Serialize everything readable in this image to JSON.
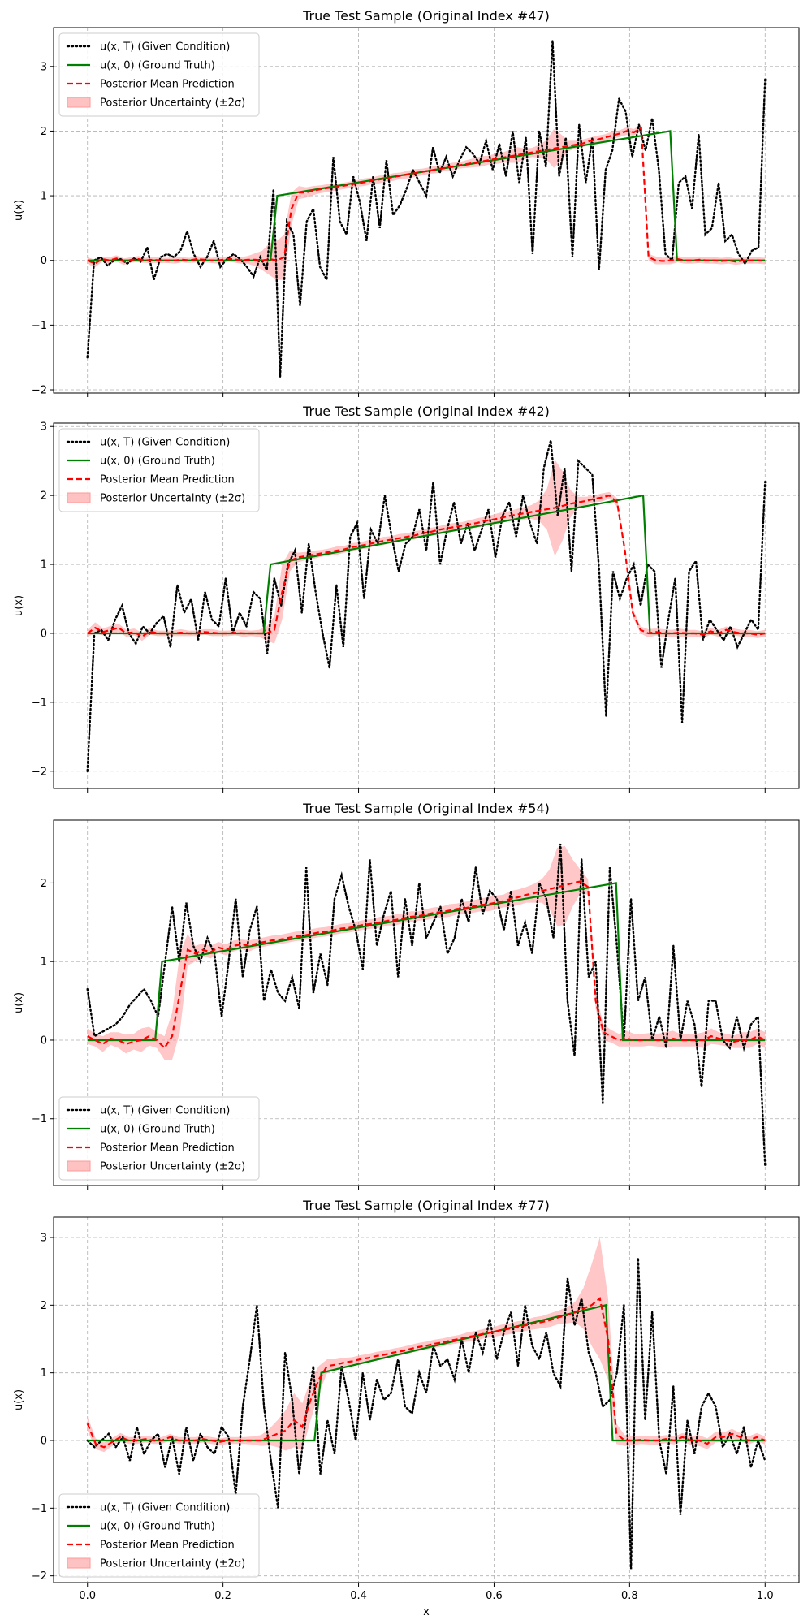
{
  "figure": {
    "xlabel": "x",
    "ylabel": "u(x)"
  },
  "legend_labels": {
    "condition": "u(x, T) (Given Condition)",
    "truth": "u(x, 0) (Ground Truth)",
    "mean": "Posterior Mean Prediction",
    "band": "Posterior Uncertainty (±2σ)"
  },
  "colors": {
    "condition": "#000000",
    "truth": "#008000",
    "mean": "#ff0000",
    "band": "#ff9999"
  },
  "chart_data": [
    {
      "type": "line",
      "title": "True Test Sample (Original Index #47)",
      "xlabel": "",
      "ylabel": "u(x)",
      "xlim": [
        -0.05,
        1.05
      ],
      "ylim": [
        -2.05,
        3.6
      ],
      "xticks": [
        0.0,
        0.2,
        0.4,
        0.6,
        0.8,
        1.0
      ],
      "yticks": [
        -2,
        -1,
        0,
        1,
        2,
        3
      ],
      "legend": "upper-left",
      "truth": {
        "x": [
          0,
          0.27,
          0.28,
          0.86,
          0.87,
          1.0
        ],
        "y": [
          0,
          0,
          1.0,
          2.0,
          0,
          0
        ]
      },
      "truth_jump": 0.275,
      "truth_drop": 0.865,
      "condition_y": [
        -1.5,
        0.0,
        0.05,
        -0.08,
        0.0,
        0.02,
        -0.05,
        0.03,
        -0.02,
        0.2,
        -0.3,
        0.05,
        0.1,
        0.05,
        0.15,
        0.45,
        0.1,
        -0.1,
        0.05,
        0.3,
        -0.1,
        0.02,
        0.1,
        0.02,
        -0.1,
        -0.25,
        0.05,
        -0.15,
        1.1,
        -1.8,
        0.6,
        0.4,
        -0.7,
        0.6,
        0.8,
        -0.1,
        -0.3,
        1.6,
        0.6,
        0.4,
        1.3,
        0.9,
        0.3,
        1.3,
        0.5,
        1.55,
        0.7,
        0.85,
        1.1,
        1.4,
        1.2,
        1.0,
        1.75,
        1.35,
        1.6,
        1.3,
        1.55,
        1.75,
        1.65,
        1.5,
        1.85,
        1.4,
        1.8,
        1.3,
        2.0,
        1.2,
        1.9,
        0.1,
        2.0,
        1.45,
        3.4,
        1.3,
        1.9,
        0.05,
        2.1,
        1.2,
        1.9,
        -0.15,
        1.4,
        1.7,
        2.5,
        2.3,
        1.6,
        2.1,
        1.7,
        2.2,
        1.4,
        0.1,
        0.0,
        1.2,
        1.3,
        0.8,
        1.95,
        0.4,
        0.5,
        1.2,
        0.3,
        0.4,
        0.1,
        -0.05,
        0.15,
        0.2,
        2.8
      ],
      "mean_y": [
        0.0,
        -0.05,
        0.02,
        0.0,
        0.03,
        -0.02,
        0.01,
        0.02,
        0.0,
        0.01,
        0.0,
        0.0,
        0.0,
        0.01,
        0.0,
        0.02,
        0.01,
        0.0,
        0.0,
        0.02,
        0.02,
        0.0,
        0.01,
        0.01,
        0.0,
        0.02,
        0.0,
        0.05,
        0.8,
        1.05,
        1.05,
        1.08,
        1.1,
        1.12,
        1.13,
        1.15,
        1.17,
        1.19,
        1.21,
        1.23,
        1.25,
        1.27,
        1.29,
        1.31,
        1.33,
        1.35,
        1.37,
        1.39,
        1.41,
        1.43,
        1.45,
        1.47,
        1.49,
        1.51,
        1.53,
        1.55,
        1.57,
        1.59,
        1.61,
        1.63,
        1.65,
        1.67,
        1.69,
        1.71,
        1.73,
        1.75,
        1.77,
        1.79,
        1.81,
        1.85,
        1.87,
        1.9,
        1.93,
        1.96,
        2.0,
        1.98,
        2.05,
        0.05,
        0.0,
        -0.01,
        0.0,
        0.02,
        0.0,
        0.0,
        0.01,
        0.0,
        0.0,
        -0.01,
        0.0,
        -0.02,
        0.0,
        0.0,
        0.0,
        -0.01
      ],
      "band_w": [
        0.05,
        0.06,
        0.04,
        0.05,
        0.05,
        0.05,
        0.04,
        0.05,
        0.04,
        0.05,
        0.04,
        0.04,
        0.05,
        0.04,
        0.04,
        0.05,
        0.04,
        0.04,
        0.05,
        0.04,
        0.05,
        0.05,
        0.06,
        0.1,
        0.15,
        0.25,
        0.3,
        0.35,
        0.25,
        0.1,
        0.08,
        0.07,
        0.06,
        0.06,
        0.05,
        0.05,
        0.05,
        0.05,
        0.06,
        0.05,
        0.06,
        0.05,
        0.06,
        0.05,
        0.06,
        0.06,
        0.05,
        0.05,
        0.06,
        0.05,
        0.06,
        0.05,
        0.06,
        0.07,
        0.08,
        0.07,
        0.08,
        0.08,
        0.1,
        0.12,
        0.08,
        0.07,
        0.1,
        0.15,
        0.3,
        0.2,
        0.08,
        0.06,
        0.06,
        0.05,
        0.06,
        0.05,
        0.06,
        0.05,
        0.06,
        0.05,
        0.06,
        0.05,
        0.06,
        0.05,
        0.06,
        0.05
      ],
      "mean_x_start": 0.0
    },
    {
      "type": "line",
      "title": "True Test Sample (Original Index #42)",
      "xlabel": "",
      "ylabel": "u(x)",
      "xlim": [
        -0.05,
        1.05
      ],
      "ylim": [
        -2.25,
        3.05
      ],
      "xticks": [
        0.0,
        0.2,
        0.4,
        0.6,
        0.8,
        1.0
      ],
      "yticks": [
        -2,
        -1,
        0,
        1,
        2,
        3
      ],
      "legend": "upper-left",
      "truth": {
        "x": [
          0,
          0.26,
          0.27,
          0.82,
          0.83,
          1.0
        ],
        "y": [
          0,
          0,
          1.0,
          2.0,
          0,
          0
        ]
      },
      "condition_y": [
        -2.0,
        0.0,
        0.05,
        -0.1,
        0.2,
        0.4,
        0.0,
        -0.15,
        0.1,
        0.0,
        0.15,
        0.25,
        -0.2,
        0.7,
        0.3,
        0.5,
        -0.1,
        0.6,
        0.2,
        0.1,
        0.8,
        0.0,
        0.3,
        0.1,
        0.6,
        0.5,
        -0.3,
        0.8,
        0.4,
        1.0,
        1.2,
        0.3,
        1.3,
        0.6,
        0.0,
        -0.5,
        0.7,
        -0.2,
        1.4,
        1.6,
        0.5,
        1.5,
        1.3,
        2.0,
        1.4,
        0.9,
        1.3,
        1.4,
        1.8,
        1.2,
        2.2,
        1.0,
        1.5,
        1.9,
        1.3,
        1.6,
        1.2,
        1.5,
        1.8,
        1.1,
        1.7,
        1.9,
        1.4,
        2.0,
        1.6,
        1.3,
        2.4,
        2.8,
        1.7,
        2.4,
        0.9,
        2.5,
        2.4,
        2.3,
        0.9,
        -1.2,
        0.9,
        0.5,
        0.8,
        1.0,
        0.4,
        1.0,
        0.9,
        -0.5,
        0.2,
        0.8,
        -1.3,
        0.9,
        1.05,
        -0.1,
        0.2,
        0.05,
        -0.1,
        0.1,
        -0.2,
        0.0,
        0.2,
        0.05,
        2.2
      ],
      "mean_y": [
        0.0,
        0.08,
        0.02,
        0.05,
        0.08,
        0.0,
        0.02,
        -0.05,
        0.03,
        0.0,
        0.0,
        0.0,
        0.01,
        0.0,
        0.0,
        0.02,
        0.01,
        0.0,
        0.0,
        0.01,
        0.0,
        0.0,
        0.0,
        0.0,
        0.05,
        0.6,
        1.05,
        1.1,
        1.12,
        1.14,
        1.16,
        1.18,
        1.2,
        1.22,
        1.25,
        1.27,
        1.29,
        1.32,
        1.34,
        1.36,
        1.38,
        1.4,
        1.42,
        1.45,
        1.47,
        1.5,
        1.52,
        1.54,
        1.56,
        1.58,
        1.6,
        1.63,
        1.65,
        1.67,
        1.7,
        1.72,
        1.74,
        1.76,
        1.78,
        1.8,
        1.82,
        1.85,
        1.88,
        1.9,
        1.92,
        1.95,
        1.97,
        2.0,
        1.9,
        1.2,
        0.3,
        0.05,
        0.0,
        0.02,
        0.0,
        0.0,
        0.01,
        0.0,
        0.0,
        -0.02,
        0.03,
        0.0,
        0.05,
        0.02,
        0.0,
        0.0,
        -0.02,
        0.0
      ],
      "band_w": [
        0.05,
        0.08,
        0.05,
        0.06,
        0.06,
        0.05,
        0.05,
        0.06,
        0.05,
        0.04,
        0.04,
        0.04,
        0.05,
        0.04,
        0.04,
        0.04,
        0.05,
        0.04,
        0.04,
        0.04,
        0.05,
        0.04,
        0.05,
        0.1,
        0.2,
        0.4,
        0.15,
        0.07,
        0.06,
        0.06,
        0.05,
        0.05,
        0.06,
        0.05,
        0.06,
        0.05,
        0.06,
        0.05,
        0.06,
        0.05,
        0.06,
        0.05,
        0.06,
        0.05,
        0.06,
        0.05,
        0.06,
        0.06,
        0.05,
        0.06,
        0.07,
        0.06,
        0.07,
        0.08,
        0.07,
        0.08,
        0.09,
        0.1,
        0.15,
        0.3,
        0.7,
        0.5,
        0.2,
        0.08,
        0.06,
        0.05,
        0.06,
        0.05,
        0.06,
        0.05,
        0.06,
        0.05,
        0.06,
        0.05,
        0.06,
        0.05,
        0.06,
        0.05
      ],
      "mean_x_start": 0.0
    },
    {
      "type": "line",
      "title": "True Test Sample (Original Index #54)",
      "xlabel": "",
      "ylabel": "u(x)",
      "xlim": [
        -0.05,
        1.05
      ],
      "ylim": [
        -1.85,
        2.8
      ],
      "xticks": [
        0.0,
        0.2,
        0.4,
        0.6,
        0.8,
        1.0
      ],
      "yticks": [
        -1,
        0,
        1,
        2
      ],
      "legend": "lower-left",
      "truth": {
        "x": [
          0,
          0.1,
          0.11,
          0.78,
          0.79,
          1.0
        ],
        "y": [
          0,
          0,
          1.0,
          2.0,
          0,
          0
        ]
      },
      "condition_y": [
        0.65,
        0.05,
        0.1,
        0.15,
        0.2,
        0.3,
        0.45,
        0.55,
        0.65,
        0.5,
        0.3,
        1.0,
        1.7,
        1.0,
        1.75,
        1.2,
        1.0,
        1.3,
        1.1,
        0.3,
        1.0,
        1.8,
        0.8,
        1.4,
        1.7,
        0.5,
        0.9,
        0.6,
        0.5,
        0.8,
        0.4,
        2.2,
        0.6,
        1.1,
        0.7,
        1.8,
        2.1,
        1.7,
        1.4,
        0.9,
        2.3,
        1.2,
        1.6,
        1.9,
        0.8,
        1.8,
        1.2,
        2.0,
        1.3,
        1.5,
        1.7,
        1.1,
        1.3,
        1.8,
        1.5,
        2.2,
        1.6,
        1.9,
        1.8,
        1.4,
        1.9,
        1.2,
        1.5,
        1.1,
        2.0,
        1.8,
        1.3,
        2.5,
        0.5,
        -0.2,
        2.3,
        0.8,
        1.0,
        -0.8,
        2.2,
        1.2,
        0.0,
        1.8,
        0.5,
        0.8,
        0.0,
        0.3,
        -0.1,
        1.2,
        0.0,
        0.5,
        0.2,
        -0.6,
        0.5,
        0.5,
        0.0,
        -0.1,
        0.3,
        -0.1,
        0.2,
        0.3,
        -1.6
      ],
      "mean_y": [
        0.05,
        0.0,
        -0.05,
        0.02,
        0.0,
        -0.05,
        -0.02,
        0.0,
        0.05,
        0.0,
        -0.1,
        0.05,
        0.6,
        1.15,
        1.1,
        1.15,
        1.12,
        1.18,
        1.15,
        1.2,
        1.22,
        1.2,
        1.23,
        1.25,
        1.27,
        1.28,
        1.3,
        1.32,
        1.33,
        1.35,
        1.37,
        1.38,
        1.4,
        1.42,
        1.43,
        1.45,
        1.47,
        1.48,
        1.5,
        1.52,
        1.53,
        1.55,
        1.57,
        1.58,
        1.6,
        1.62,
        1.63,
        1.65,
        1.67,
        1.68,
        1.7,
        1.72,
        1.73,
        1.75,
        1.77,
        1.8,
        1.82,
        1.85,
        1.87,
        1.9,
        1.92,
        1.95,
        1.97,
        2.0,
        2.02,
        1.95,
        0.5,
        0.1,
        0.05,
        0.0,
        0.02,
        0.0,
        0.0,
        0.01,
        0.0,
        0.0,
        0.02,
        0.0,
        0.0,
        0.0,
        0.0,
        0.05,
        0.02,
        0.0,
        -0.02,
        0.0,
        0.0,
        0.05,
        0.0
      ],
      "band_w": [
        0.1,
        0.08,
        0.1,
        0.08,
        0.1,
        0.12,
        0.1,
        0.15,
        0.12,
        0.1,
        0.15,
        0.3,
        0.5,
        0.2,
        0.1,
        0.08,
        0.08,
        0.07,
        0.07,
        0.07,
        0.06,
        0.07,
        0.06,
        0.06,
        0.06,
        0.06,
        0.06,
        0.06,
        0.06,
        0.06,
        0.06,
        0.06,
        0.06,
        0.06,
        0.06,
        0.06,
        0.06,
        0.06,
        0.07,
        0.06,
        0.07,
        0.06,
        0.07,
        0.06,
        0.07,
        0.07,
        0.07,
        0.08,
        0.07,
        0.08,
        0.08,
        0.08,
        0.09,
        0.09,
        0.08,
        0.1,
        0.1,
        0.1,
        0.12,
        0.15,
        0.25,
        0.5,
        0.5,
        0.3,
        0.15,
        0.1,
        0.1,
        0.1,
        0.08,
        0.08,
        0.1,
        0.08,
        0.08,
        0.08,
        0.08,
        0.1,
        0.1,
        0.08,
        0.08,
        0.08,
        0.1,
        0.1,
        0.08,
        0.08,
        0.08,
        0.1,
        0.1,
        0.1
      ],
      "mean_x_start": 0.0
    },
    {
      "type": "line",
      "title": "True Test Sample (Original Index #77)",
      "xlabel": "x",
      "ylabel": "u(x)",
      "xlim": [
        -0.05,
        1.05
      ],
      "ylim": [
        -2.1,
        3.3
      ],
      "xticks": [
        0.0,
        0.2,
        0.4,
        0.6,
        0.8,
        1.0
      ],
      "yticks": [
        -2,
        -1,
        0,
        1,
        2,
        3
      ],
      "legend": "lower-left",
      "truth": {
        "x": [
          0,
          0.335,
          0.345,
          0.765,
          0.775,
          1.0
        ],
        "y": [
          0,
          0,
          1.0,
          2.0,
          0,
          0
        ]
      },
      "condition_y": [
        0.0,
        -0.1,
        0.0,
        0.1,
        -0.1,
        0.05,
        -0.3,
        0.2,
        -0.2,
        0.0,
        0.1,
        -0.4,
        0.05,
        -0.5,
        0.2,
        -0.3,
        0.1,
        -0.1,
        -0.2,
        0.2,
        0.05,
        -0.8,
        0.5,
        1.2,
        2.0,
        0.5,
        -0.3,
        -1.0,
        1.3,
        0.6,
        -0.5,
        0.4,
        1.1,
        -0.5,
        0.3,
        -0.2,
        1.1,
        0.6,
        0.0,
        1.0,
        0.3,
        0.9,
        0.6,
        0.7,
        1.2,
        0.5,
        0.4,
        1.0,
        0.7,
        1.4,
        1.1,
        1.2,
        0.9,
        1.5,
        1.0,
        1.6,
        1.3,
        1.8,
        1.2,
        1.6,
        1.9,
        1.1,
        2.0,
        1.4,
        1.2,
        1.6,
        1.0,
        0.8,
        2.4,
        1.7,
        2.1,
        1.3,
        1.0,
        0.5,
        0.6,
        1.0,
        2.0,
        -1.9,
        2.7,
        0.3,
        1.9,
        0.0,
        -0.5,
        0.8,
        -1.1,
        0.3,
        -0.2,
        0.5,
        0.7,
        0.5,
        -0.1,
        0.1,
        -0.2,
        0.2,
        -0.4,
        0.0,
        -0.3
      ],
      "mean_y": [
        0.25,
        -0.05,
        -0.1,
        -0.02,
        0.05,
        0.0,
        0.0,
        0.02,
        0.0,
        0.0,
        0.05,
        0.0,
        0.0,
        0.0,
        0.02,
        0.0,
        -0.02,
        0.0,
        0.0,
        0.0,
        0.0,
        0.0,
        0.05,
        0.1,
        0.15,
        0.3,
        0.2,
        0.6,
        0.9,
        1.1,
        1.12,
        1.15,
        1.17,
        1.2,
        1.22,
        1.25,
        1.27,
        1.3,
        1.32,
        1.35,
        1.38,
        1.4,
        1.43,
        1.45,
        1.48,
        1.5,
        1.53,
        1.55,
        1.58,
        1.6,
        1.63,
        1.65,
        1.68,
        1.7,
        1.73,
        1.75,
        1.78,
        1.82,
        1.85,
        1.9,
        1.95,
        2.0,
        2.1,
        1.5,
        0.1,
        0.0,
        0.0,
        0.01,
        0.0,
        0.0,
        0.02,
        0.0,
        0.05,
        0.0,
        0.0,
        -0.05,
        0.05,
        0.05,
        0.1,
        0.05,
        0.0,
        0.05,
        0.0
      ],
      "band_w": [
        0.1,
        0.08,
        0.07,
        0.06,
        0.06,
        0.05,
        0.05,
        0.05,
        0.05,
        0.05,
        0.05,
        0.05,
        0.05,
        0.05,
        0.05,
        0.05,
        0.05,
        0.05,
        0.05,
        0.05,
        0.06,
        0.08,
        0.12,
        0.2,
        0.3,
        0.4,
        0.35,
        0.3,
        0.2,
        0.1,
        0.08,
        0.07,
        0.06,
        0.06,
        0.06,
        0.06,
        0.06,
        0.06,
        0.06,
        0.06,
        0.06,
        0.06,
        0.06,
        0.06,
        0.06,
        0.06,
        0.07,
        0.07,
        0.07,
        0.07,
        0.08,
        0.08,
        0.08,
        0.08,
        0.09,
        0.09,
        0.1,
        0.1,
        0.12,
        0.15,
        0.3,
        0.6,
        0.9,
        0.6,
        0.15,
        0.08,
        0.07,
        0.06,
        0.06,
        0.06,
        0.06,
        0.06,
        0.06,
        0.07,
        0.08,
        0.08,
        0.08,
        0.07,
        0.07,
        0.06,
        0.06,
        0.06,
        0.06
      ],
      "mean_x_start": 0.0
    }
  ]
}
